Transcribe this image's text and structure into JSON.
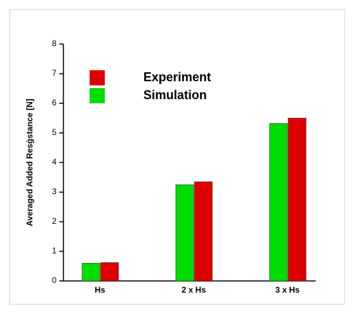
{
  "chart_data": {
    "type": "bar",
    "y_label": "Averaged Added Resġstance [N]",
    "categories": [
      "Hs",
      "2 x Hs",
      "3 x Hs"
    ],
    "series": [
      {
        "name": "Simulation",
        "color": "#00dd00",
        "values": [
          0.6,
          3.25,
          5.32
        ]
      },
      {
        "name": "Experiment",
        "color": "#dd0000",
        "values": [
          0.62,
          3.35,
          5.5
        ]
      }
    ],
    "ylim": [
      0,
      8
    ],
    "yticks": [
      0,
      1,
      2,
      3,
      4,
      5,
      6,
      7,
      8
    ],
    "grid": false
  }
}
